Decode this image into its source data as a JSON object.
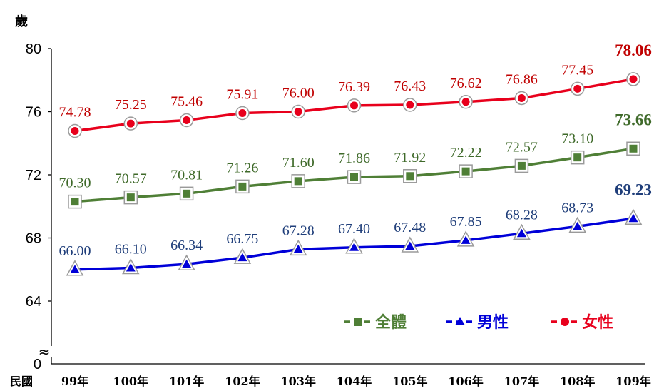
{
  "chart_data": {
    "type": "line",
    "ylabel": "歲",
    "xlabel": "民國",
    "categories": [
      "99年",
      "100年",
      "101年",
      "102年",
      "103年",
      "104年",
      "105年",
      "106年",
      "107年",
      "108年",
      "109年"
    ],
    "ylim": [
      64,
      80
    ],
    "yticks": [
      "80",
      "76",
      "72",
      "68",
      "64"
    ],
    "y_zero_label": "0",
    "axis_break_symbol": "≈",
    "series": [
      {
        "name": "女性",
        "color": "#e8001c",
        "label_color": "#c00000",
        "marker": "circle",
        "values": [
          74.78,
          75.25,
          75.46,
          75.91,
          76.0,
          76.39,
          76.43,
          76.62,
          76.86,
          77.45,
          78.06
        ],
        "labels": [
          "74.78",
          "75.25",
          "75.46",
          "75.91",
          "76.00",
          "76.39",
          "76.43",
          "76.62",
          "76.86",
          "77.45",
          "78.06"
        ]
      },
      {
        "name": "全體",
        "color": "#4f7f36",
        "label_color": "#3f6a2a",
        "marker": "square",
        "values": [
          70.3,
          70.57,
          70.81,
          71.26,
          71.6,
          71.86,
          71.92,
          72.22,
          72.57,
          73.1,
          73.66
        ],
        "labels": [
          "70.30",
          "70.57",
          "70.81",
          "71.26",
          "71.60",
          "71.86",
          "71.92",
          "72.22",
          "72.57",
          "73.10",
          "73.66"
        ]
      },
      {
        "name": "男性",
        "color": "#0000d8",
        "label_color": "#1f3e7a",
        "marker": "triangle",
        "values": [
          66.0,
          66.1,
          66.34,
          66.75,
          67.28,
          67.4,
          67.48,
          67.85,
          68.28,
          68.73,
          69.23
        ],
        "labels": [
          "66.00",
          "66.10",
          "66.34",
          "66.75",
          "67.28",
          "67.40",
          "67.48",
          "67.85",
          "68.28",
          "68.73",
          "69.23"
        ]
      }
    ],
    "legend": {
      "placement": "bottom-right",
      "order": [
        "全體",
        "男性",
        "女性"
      ]
    },
    "grid": false
  }
}
